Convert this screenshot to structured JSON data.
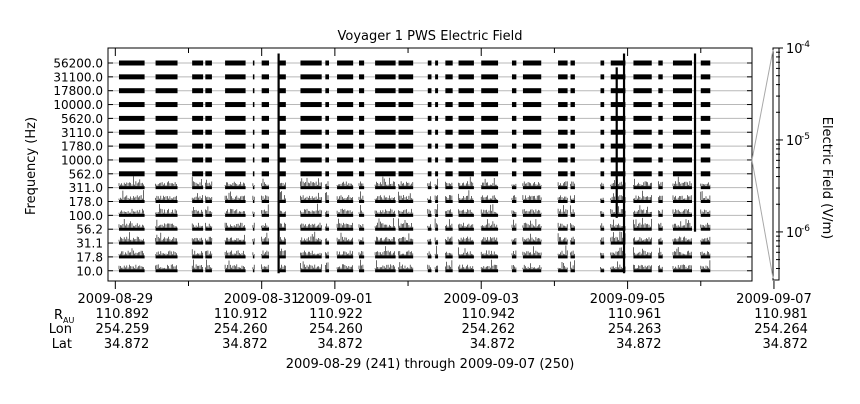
{
  "chart_data": {
    "type": "heatmap",
    "title": "Voyager 1 PWS Electric Field",
    "ylabel": "Frequency (Hz)",
    "colorbar_label": "Electric Field (V/m)",
    "colorbar_ticks": [
      {
        "mant": "10",
        "exp": "-4",
        "value": 0.0001
      },
      {
        "mant": "10",
        "exp": "-5",
        "value": 1e-05
      },
      {
        "mant": "10",
        "exp": "-6",
        "value": 1e-06
      }
    ],
    "channels": [
      "56200.0",
      "31100.0",
      "17800.0",
      "10000.0",
      "5620.0",
      "3110.0",
      "1780.0",
      "1000.0",
      "562.0",
      "311.0",
      "178.0",
      "100.0",
      "56.2",
      "31.1",
      "17.8",
      "10.0"
    ],
    "xlim_day": [
      240.9,
      249.7
    ],
    "x_ticks": [
      {
        "label": "2009-08-29",
        "day": 241,
        "major": true
      },
      {
        "label": "",
        "day": 242,
        "major": false
      },
      {
        "label": "2009-08-31",
        "day": 243,
        "major": true
      },
      {
        "label": "2009-09-01",
        "day": 244,
        "major": true
      },
      {
        "label": "",
        "day": 245,
        "major": false
      },
      {
        "label": "2009-09-03",
        "day": 246,
        "major": true
      },
      {
        "label": "",
        "day": 247,
        "major": false
      },
      {
        "label": "2009-09-05",
        "day": 248,
        "major": true
      },
      {
        "label": "",
        "day": 249,
        "major": false
      },
      {
        "label": "2009-09-07",
        "day": 250,
        "major": true
      }
    ],
    "ephemeris_labels": {
      "r": "R",
      "r_sub": "AU",
      "lon": "Lon",
      "lat": "Lat"
    },
    "ephemeris": [
      {
        "r": "110.892",
        "lon": "254.259",
        "lat": "34.872"
      },
      {
        "r": "110.912",
        "lon": "254.260",
        "lat": "34.872"
      },
      {
        "r": "110.922",
        "lon": "254.260",
        "lat": "34.872"
      },
      {
        "r": "110.942",
        "lon": "254.262",
        "lat": "34.872"
      },
      {
        "r": "110.961",
        "lon": "254.263",
        "lat": "34.872"
      },
      {
        "r": "110.981",
        "lon": "254.264",
        "lat": "34.872"
      }
    ],
    "segments": [
      [
        241.05,
        241.4
      ],
      [
        241.55,
        241.85
      ],
      [
        242.05,
        242.2
      ],
      [
        242.23,
        242.32
      ],
      [
        242.5,
        242.78
      ],
      [
        242.88,
        242.9
      ],
      [
        243.0,
        243.1
      ],
      [
        243.22,
        243.33
      ],
      [
        243.53,
        243.82
      ],
      [
        243.87,
        243.92
      ],
      [
        244.03,
        244.25
      ],
      [
        244.33,
        244.4
      ],
      [
        244.55,
        244.83
      ],
      [
        244.87,
        245.07
      ],
      [
        245.27,
        245.32
      ],
      [
        245.37,
        245.41
      ],
      [
        245.51,
        245.61
      ],
      [
        245.69,
        245.9
      ],
      [
        246.0,
        246.23
      ],
      [
        246.42,
        246.48
      ],
      [
        246.57,
        246.82
      ],
      [
        247.05,
        247.18
      ],
      [
        247.22,
        247.28
      ],
      [
        247.63,
        247.68
      ],
      [
        247.77,
        247.97
      ],
      [
        248.08,
        248.33
      ],
      [
        248.42,
        248.48
      ],
      [
        248.62,
        248.88
      ],
      [
        249.0,
        249.13
      ]
    ],
    "footer": "2009-08-29 (241) through 2009-09-07 (250)"
  }
}
